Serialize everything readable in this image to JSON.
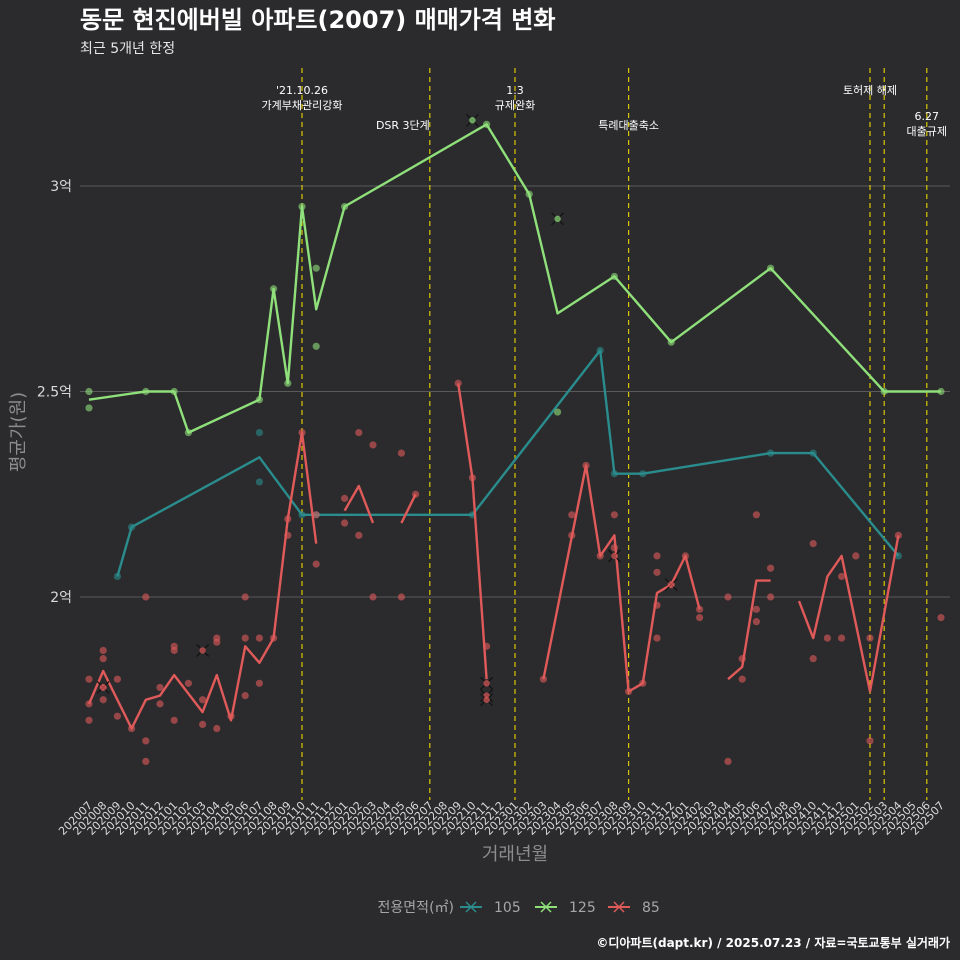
{
  "title": "동문 현진에버빌 아파트(2007) 매매가격 변화",
  "subtitle": "최근 5개년 한정",
  "caption": "©디아파트(dapt.kr) / 2025.07.23 / 자료=국토교통부 실거래가",
  "chart_data": {
    "type": "line",
    "xlabel": "거래년월",
    "ylabel": "평균가(원)",
    "ylim": [
      1.53,
      3.15
    ],
    "y_ticks": [
      {
        "v": 2.0,
        "label": "2억"
      },
      {
        "v": 2.5,
        "label": "2.5억"
      },
      {
        "v": 3.0,
        "label": "3억"
      }
    ],
    "grid": true,
    "legend_title": "전용면적(㎡)",
    "legend_position": "bottom",
    "categories": [
      "202007",
      "202008",
      "202009",
      "202010",
      "202011",
      "202012",
      "202101",
      "202102",
      "202103",
      "202104",
      "202105",
      "202106",
      "202107",
      "202108",
      "202109",
      "202110",
      "202111",
      "202112",
      "202201",
      "202202",
      "202203",
      "202204",
      "202205",
      "202206",
      "202207",
      "202208",
      "202209",
      "202210",
      "202211",
      "202212",
      "202301",
      "202302",
      "202303",
      "202304",
      "202305",
      "202306",
      "202307",
      "202308",
      "202309",
      "202310",
      "202311",
      "202312",
      "202401",
      "202402",
      "202403",
      "202404",
      "202405",
      "202406",
      "202407",
      "202408",
      "202409",
      "202410",
      "202411",
      "202412",
      "202501",
      "202502",
      "202503",
      "202504",
      "202505",
      "202506",
      "202507"
    ],
    "annotations": [
      {
        "x": "202110",
        "lines": [
          "'21.10.26",
          "가계부채관리강화"
        ],
        "level": 0
      },
      {
        "x": "202207",
        "lines": [
          "DSR 3단계"
        ],
        "level": 1
      },
      {
        "x": "202301",
        "lines": [
          "1.3",
          "규제완화"
        ],
        "level": 0
      },
      {
        "x": "202309",
        "lines": [
          "특례대출축소"
        ],
        "level": 1
      },
      {
        "x": "202502",
        "lines": [
          "토허제 해제"
        ],
        "level": 0
      },
      {
        "x": "202503",
        "lines": [],
        "level": 0
      },
      {
        "x": "202506",
        "lines": [
          "6.27",
          "대출규제"
        ],
        "level": 2
      }
    ],
    "series": [
      {
        "name": "105",
        "color": "#2a8c8c",
        "line": [
          [
            "202009",
            2.05
          ],
          [
            "202010",
            2.17
          ],
          [
            "202107",
            2.34
          ],
          [
            "202110",
            2.2
          ],
          [
            "202210",
            2.2
          ],
          [
            "202307",
            2.6
          ],
          [
            "202308",
            2.3
          ],
          [
            "202310",
            2.3
          ],
          [
            "202407",
            2.35
          ],
          [
            "202410",
            2.35
          ],
          [
            "202504",
            2.1
          ]
        ],
        "points": [
          [
            "202009",
            2.05
          ],
          [
            "202010",
            2.17
          ],
          [
            "202107",
            2.4
          ],
          [
            "202107",
            2.28
          ],
          [
            "202110",
            2.2
          ],
          [
            "202111",
            2.2
          ],
          [
            "202210",
            2.2
          ],
          [
            "202307",
            2.6
          ],
          [
            "202308",
            2.3
          ],
          [
            "202310",
            2.3
          ],
          [
            "202407",
            2.35
          ],
          [
            "202410",
            2.35
          ],
          [
            "202504",
            2.1
          ]
        ],
        "crosses": []
      },
      {
        "name": "125",
        "color": "#8fe07a",
        "line": [
          [
            "202007",
            2.48
          ],
          [
            "202011",
            2.5
          ],
          [
            "202101",
            2.5
          ],
          [
            "202102",
            2.4
          ],
          [
            "202107",
            2.48
          ],
          [
            "202108",
            2.75
          ],
          [
            "202109",
            2.52
          ],
          [
            "202110",
            2.95
          ],
          [
            "202111",
            2.7
          ],
          [
            "202201",
            2.95
          ],
          [
            "202211",
            3.15
          ],
          [
            "202302",
            2.98
          ],
          [
            "202304",
            2.69
          ],
          [
            "202308",
            2.78
          ],
          [
            "202312",
            2.62
          ],
          [
            "202407",
            2.8
          ],
          [
            "202503",
            2.5
          ],
          [
            "202507",
            2.5
          ]
        ],
        "points": [
          [
            "202007",
            2.5
          ],
          [
            "202007",
            2.46
          ],
          [
            "202011",
            2.5
          ],
          [
            "202101",
            2.5
          ],
          [
            "202102",
            2.4
          ],
          [
            "202107",
            2.48
          ],
          [
            "202108",
            2.75
          ],
          [
            "202109",
            2.52
          ],
          [
            "202110",
            2.95
          ],
          [
            "202111",
            2.8
          ],
          [
            "202111",
            2.61
          ],
          [
            "202201",
            2.95
          ],
          [
            "202211",
            3.15
          ],
          [
            "202302",
            2.98
          ],
          [
            "202304",
            2.45
          ],
          [
            "202308",
            2.78
          ],
          [
            "202312",
            2.62
          ],
          [
            "202407",
            2.8
          ],
          [
            "202503",
            2.5
          ],
          [
            "202507",
            2.5
          ]
        ],
        "crosses": [
          [
            "202210",
            3.16
          ],
          [
            "202304",
            2.92
          ]
        ]
      },
      {
        "name": "85",
        "color": "#e05a5a",
        "line": [
          [
            [
              "202007",
              1.74
            ],
            [
              "202008",
              1.82
            ],
            [
              "202009",
              1.75
            ],
            [
              "202010",
              1.68
            ],
            [
              "202011",
              1.75
            ],
            [
              "202012",
              1.76
            ],
            [
              "202101",
              1.81
            ],
            [
              "202103",
              1.72
            ],
            [
              "202104",
              1.81
            ],
            [
              "202105",
              1.7
            ],
            [
              "202106",
              1.88
            ],
            [
              "202107",
              1.84
            ],
            [
              "202108",
              1.9
            ],
            [
              "202109",
              2.19
            ],
            [
              "202110",
              2.4
            ],
            [
              "202111",
              2.13
            ]
          ],
          [
            [
              "202201",
              2.21
            ],
            [
              "202202",
              2.27
            ],
            [
              "202203",
              2.18
            ]
          ],
          [
            [
              "202205",
              2.18
            ],
            [
              "202206",
              2.25
            ]
          ],
          [
            [
              "202209",
              2.52
            ],
            [
              "202210",
              2.29
            ],
            [
              "202211",
              1.8
            ]
          ],
          [
            [
              "202303",
              1.8
            ],
            [
              "202306",
              2.32
            ],
            [
              "202307",
              2.1
            ],
            [
              "202308",
              2.15
            ],
            [
              "202309",
              1.77
            ],
            [
              "202310",
              1.79
            ],
            [
              "202311",
              2.01
            ],
            [
              "202312",
              2.03
            ],
            [
              "202401",
              2.1
            ],
            [
              "202402",
              1.97
            ]
          ],
          [
            [
              "202404",
              1.8
            ],
            [
              "202405",
              1.83
            ],
            [
              "202406",
              2.04
            ],
            [
              "202407",
              2.04
            ]
          ],
          [
            [
              "202409",
              1.99
            ],
            [
              "202410",
              1.9
            ],
            [
              "202411",
              2.05
            ],
            [
              "202412",
              2.1
            ],
            [
              "202502",
              1.77
            ],
            [
              "202504",
              2.15
            ]
          ]
        ],
        "points": [
          [
            "202007",
            1.8
          ],
          [
            "202007",
            1.74
          ],
          [
            "202007",
            1.7
          ],
          [
            "202008",
            1.87
          ],
          [
            "202008",
            1.85
          ],
          [
            "202008",
            1.78
          ],
          [
            "202008",
            1.75
          ],
          [
            "202009",
            1.8
          ],
          [
            "202009",
            1.71
          ],
          [
            "202010",
            1.68
          ],
          [
            "202011",
            2.0
          ],
          [
            "202011",
            1.65
          ],
          [
            "202011",
            1.6
          ],
          [
            "202012",
            1.78
          ],
          [
            "202012",
            1.74
          ],
          [
            "202101",
            1.88
          ],
          [
            "202101",
            1.87
          ],
          [
            "202101",
            1.7
          ],
          [
            "202102",
            1.79
          ],
          [
            "202103",
            1.75
          ],
          [
            "202103",
            1.69
          ],
          [
            "202104",
            1.9
          ],
          [
            "202104",
            1.89
          ],
          [
            "202104",
            1.68
          ],
          [
            "202105",
            1.71
          ],
          [
            "202106",
            2.0
          ],
          [
            "202106",
            1.9
          ],
          [
            "202106",
            1.76
          ],
          [
            "202107",
            1.9
          ],
          [
            "202107",
            1.79
          ],
          [
            "202108",
            1.9
          ],
          [
            "202109",
            2.19
          ],
          [
            "202109",
            2.15
          ],
          [
            "202110",
            2.4
          ],
          [
            "202111",
            2.2
          ],
          [
            "202111",
            2.08
          ],
          [
            "202201",
            2.24
          ],
          [
            "202201",
            2.18
          ],
          [
            "202202",
            2.4
          ],
          [
            "202202",
            2.15
          ],
          [
            "202203",
            2.37
          ],
          [
            "202203",
            2.0
          ],
          [
            "202205",
            2.35
          ],
          [
            "202205",
            2.0
          ],
          [
            "202206",
            2.25
          ],
          [
            "202209",
            2.52
          ],
          [
            "202210",
            2.29
          ],
          [
            "202211",
            1.88
          ],
          [
            "202303",
            1.8
          ],
          [
            "202305",
            2.2
          ],
          [
            "202305",
            2.15
          ],
          [
            "202306",
            2.32
          ],
          [
            "202307",
            2.1
          ],
          [
            "202308",
            2.2
          ],
          [
            "202308",
            2.12
          ],
          [
            "202309",
            1.77
          ],
          [
            "202310",
            1.79
          ],
          [
            "202311",
            2.1
          ],
          [
            "202311",
            2.06
          ],
          [
            "202311",
            1.98
          ],
          [
            "202311",
            1.9
          ],
          [
            "202312",
            2.03
          ],
          [
            "202401",
            2.1
          ],
          [
            "202402",
            1.97
          ],
          [
            "202402",
            1.95
          ],
          [
            "202404",
            2.0
          ],
          [
            "202404",
            1.6
          ],
          [
            "202405",
            1.85
          ],
          [
            "202405",
            1.8
          ],
          [
            "202406",
            2.2
          ],
          [
            "202406",
            1.97
          ],
          [
            "202406",
            1.94
          ],
          [
            "202407",
            2.07
          ],
          [
            "202407",
            2.0
          ],
          [
            "202410",
            2.13
          ],
          [
            "202410",
            1.85
          ],
          [
            "202411",
            1.9
          ],
          [
            "202412",
            2.05
          ],
          [
            "202412",
            1.9
          ],
          [
            "202501",
            2.1
          ],
          [
            "202502",
            1.9
          ],
          [
            "202502",
            1.65
          ],
          [
            "202504",
            2.15
          ],
          [
            "202507",
            1.95
          ]
        ],
        "crosses": [
          [
            "202008",
            1.78
          ],
          [
            "202103",
            1.87
          ],
          [
            "202211",
            1.79
          ],
          [
            "202211",
            1.76
          ],
          [
            "202211",
            1.75
          ],
          [
            "202308",
            2.1
          ],
          [
            "202312",
            2.03
          ]
        ]
      }
    ]
  }
}
